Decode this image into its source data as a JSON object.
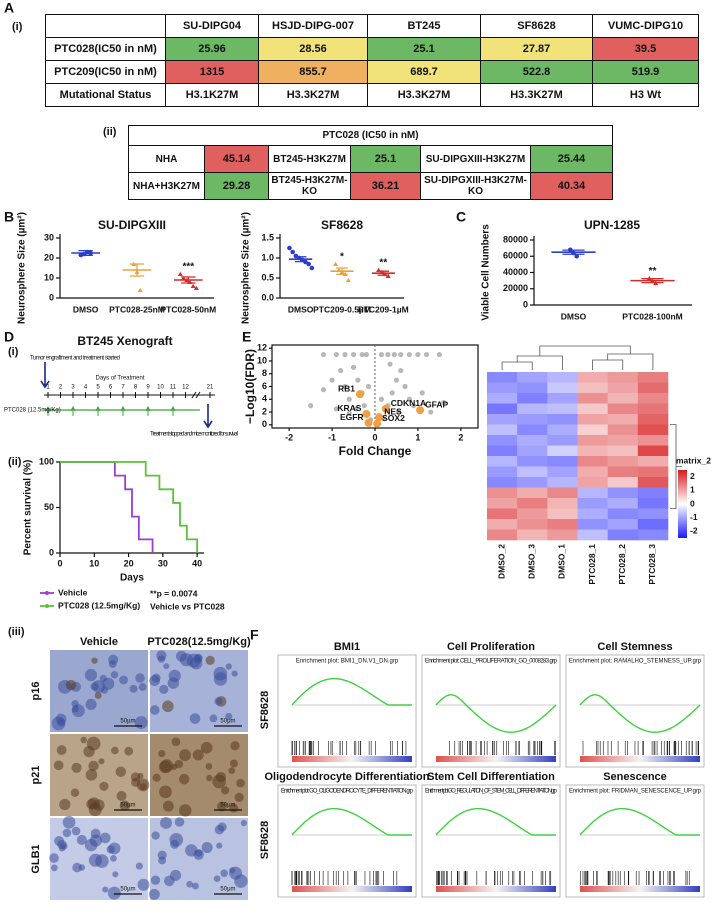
{
  "panel_labels": {
    "a": "A",
    "b": "B",
    "c": "C",
    "d": "D",
    "e": "E",
    "f": "F"
  },
  "table_i": {
    "label": "(i)",
    "columns": [
      "SU-DIPG04",
      "HSJD-DIPG-007",
      "BT245",
      "SF8628",
      "VUMC-DIPG10"
    ],
    "rows": [
      {
        "header": "PTC028(IC50 in nM)",
        "cells": [
          "25.96",
          "28.56",
          "25.1",
          "27.87",
          "39.5"
        ],
        "colors": [
          "#6cb865",
          "#f2e27a",
          "#6cb865",
          "#f2e27a",
          "#e06060"
        ]
      },
      {
        "header": "PTC209(IC50 in nM)",
        "cells": [
          "1315",
          "855.7",
          "689.7",
          "522.8",
          "519.9"
        ],
        "colors": [
          "#e06060",
          "#efb060",
          "#f2e27a",
          "#6cb865",
          "#6cb865"
        ]
      },
      {
        "header": "Mutational Status",
        "cells": [
          "H3.1K27M",
          "H3.3K27M",
          "H3.3K27M",
          "H3.3K27M",
          "H3 Wt"
        ]
      }
    ]
  },
  "table_ii": {
    "label": "(ii)",
    "title": "PTC028 (IC50 in nM)",
    "rows": [
      {
        "cells": [
          "NHA",
          "45.14",
          "BT245-H3K27M",
          "25.1",
          "SU-DIPGXIII-H3K27M",
          "25.44"
        ],
        "colors": [
          "#e06060",
          "#6cb865",
          "#6cb865"
        ]
      },
      {
        "cells": [
          "NHA+H3K27M",
          "29.28",
          "BT245-H3K27M-KO",
          "36.21",
          "SU-DIPGXIII-H3K27M-KO",
          "40.34"
        ],
        "colors": [
          "#6cb865",
          "#e06060",
          "#e06060"
        ]
      }
    ]
  },
  "chart_data": [
    {
      "type": "dot",
      "title": "SU-DIPGXIII",
      "ylabel": "Neurosphere Size (µm²)",
      "categories": [
        "DMSO",
        "PTC028-25nM",
        "PTC028-50nM"
      ],
      "points": [
        [
          21.5,
          22,
          23,
          22.5
        ],
        [
          17,
          13,
          4
        ],
        [
          12,
          10,
          9,
          8,
          6,
          5
        ]
      ],
      "means": [
        22.5,
        14,
        9
      ],
      "errors": [
        1.2,
        3,
        1.5
      ],
      "colors": [
        "#2b3fc8",
        "#e8a33a",
        "#d62b2b"
      ],
      "annotations": [
        null,
        null,
        "***"
      ],
      "ylim": [
        0,
        30
      ],
      "yticks": [
        0,
        10,
        20,
        30
      ]
    },
    {
      "type": "dot",
      "title": "SF8628",
      "ylabel": "Neurosphere Size (µm²)",
      "categories": [
        "DMSO",
        "PTC209-0.5µM",
        "PTC209-1µM"
      ],
      "points": [
        [
          1.25,
          1.15,
          1.05,
          1.0,
          0.95,
          0.9,
          0.85,
          0.75
        ],
        [
          0.85,
          0.7,
          0.65,
          0.6,
          0.45
        ],
        [
          0.7,
          0.65,
          0.6,
          0.55
        ]
      ],
      "means": [
        0.97,
        0.67,
        0.62
      ],
      "errors": [
        0.06,
        0.08,
        0.05
      ],
      "colors": [
        "#2b3fc8",
        "#e8a33a",
        "#d62b2b"
      ],
      "annotations": [
        null,
        "*",
        "**"
      ],
      "ylim": [
        0,
        1.5
      ],
      "yticks": [
        {
          "value": 0,
          "label": "0.0"
        },
        {
          "value": 0.5,
          "label": "0.5"
        },
        {
          "value": 1,
          "label": "1.0"
        },
        {
          "value": 1.5,
          "label": "1.5"
        }
      ]
    },
    {
      "type": "dot",
      "title": "UPN-1285",
      "ylabel": "Viable Cell Numbers",
      "categories": [
        "DMSO",
        "PTC028-100nM"
      ],
      "points": [
        [
          68000,
          64000,
          60000
        ],
        [
          33000,
          30000,
          27000
        ]
      ],
      "means": [
        65000,
        30000
      ],
      "errors": [
        2500,
        2500
      ],
      "colors": [
        "#2b3fc8",
        "#d62b2b"
      ],
      "annotations": [
        null,
        "**"
      ],
      "ylim": [
        0,
        80000
      ],
      "yticks": [
        0,
        20000,
        40000,
        60000,
        80000
      ]
    },
    {
      "type": "survival",
      "xlabel": "Days",
      "ylabel": "Percent survival (%)",
      "xlim": [
        0,
        42
      ],
      "xticks": [
        0,
        10,
        20,
        30,
        40
      ],
      "ylim": [
        0,
        100
      ],
      "yticks": [
        0,
        50,
        100
      ],
      "series": [
        {
          "name": "Vehicle",
          "color": "#9a3fd0",
          "x": [
            0,
            16,
            19,
            21,
            23,
            27
          ],
          "y": [
            100,
            85,
            70,
            40,
            15,
            0
          ]
        },
        {
          "name": "PTC028 (12.5mg/Kg)",
          "color": "#5cc23a",
          "x": [
            0,
            25,
            29,
            33,
            35,
            37,
            40
          ],
          "y": [
            100,
            85,
            70,
            55,
            30,
            15,
            0
          ]
        }
      ],
      "annotations": [
        "**p = 0.0074",
        "Vehicle vs PTC028"
      ]
    },
    {
      "type": "volcano",
      "xlabel": "Fold Change",
      "ylabel": "−Log10(FDR)",
      "xlim": [
        -2.4,
        2.4
      ],
      "xticks": [
        -2,
        -1,
        0,
        1,
        2
      ],
      "ylim": [
        -0.5,
        12.5
      ],
      "yticks": [
        0,
        2,
        4,
        6,
        8,
        10,
        12
      ],
      "background": {
        "color": "#9a9a9a",
        "x": [
          -1.2,
          -0.9,
          -0.7,
          -0.5,
          -0.3,
          -0.2,
          0.15,
          0.3,
          0.45,
          0.6,
          0.8,
          1.0,
          1.2,
          1.5,
          -1.5,
          -1.2,
          -1.0,
          -0.8,
          -0.7,
          -0.6,
          -0.5,
          -0.4,
          -0.3,
          -0.25,
          -0.2,
          -0.1,
          -0.6,
          -0.9,
          0.2,
          0.3,
          0.4,
          0.5,
          0.6,
          0.7,
          0.8,
          0.9,
          1.1,
          1.3,
          1.6,
          0.35,
          0.55,
          -0.45,
          0.15,
          -0.15
        ],
        "y": [
          11,
          11,
          11,
          11,
          11,
          11,
          11,
          11,
          11,
          11,
          11,
          11,
          11,
          11,
          3,
          5.5,
          7,
          8.5,
          6,
          4,
          9,
          7,
          5,
          3,
          1.5,
          0.8,
          1.8,
          2.5,
          1,
          3,
          5,
          7,
          8.5,
          6,
          4,
          3,
          5,
          2,
          3.5,
          9.5,
          2,
          2.5,
          4,
          6
        ]
      },
      "genes": {
        "color": "#f0a040",
        "labels": [
          "RB1",
          "CDKN1A",
          "GFAP",
          "KRAS",
          "NES",
          "EGFR",
          "SOX2"
        ],
        "x": [
          -0.35,
          0.25,
          1.05,
          -0.2,
          0.1,
          -0.15,
          0.05
        ],
        "y": [
          4.8,
          2.5,
          2.3,
          1.7,
          1.2,
          0.3,
          0.2
        ]
      }
    },
    {
      "type": "heatmap",
      "columns": [
        "DMSO_2",
        "DMSO_3",
        "DMSO_1",
        "PTC028_1",
        "PTC028_2",
        "PTC028_3"
      ],
      "values": [
        [
          -1.3,
          -1.0,
          -0.8,
          0.9,
          1.1,
          1.4
        ],
        [
          -1.1,
          -1.2,
          -0.6,
          0.7,
          1.0,
          1.6
        ],
        [
          -0.9,
          -1.4,
          -1.0,
          1.2,
          0.8,
          1.3
        ],
        [
          -1.5,
          -0.8,
          -0.7,
          0.6,
          1.3,
          1.5
        ],
        [
          -1.0,
          -1.1,
          -1.2,
          1.0,
          0.9,
          1.7
        ],
        [
          -0.7,
          -1.3,
          -0.9,
          0.5,
          1.2,
          1.9
        ],
        [
          -1.2,
          -0.9,
          -1.1,
          1.1,
          1.0,
          1.2
        ],
        [
          -1.4,
          -1.0,
          -0.5,
          0.8,
          0.7,
          2.0
        ],
        [
          -0.8,
          -1.2,
          -1.3,
          1.3,
          1.1,
          0.9
        ],
        [
          -1.1,
          -0.7,
          -1.0,
          0.9,
          1.4,
          1.5
        ],
        [
          -1.3,
          -1.1,
          -0.8,
          1.0,
          0.6,
          1.8
        ],
        [
          1.2,
          0.9,
          1.3,
          -0.8,
          -1.2,
          -1.4
        ],
        [
          1.0,
          1.4,
          0.8,
          -1.1,
          -0.9,
          -1.5
        ],
        [
          1.5,
          1.1,
          0.7,
          -0.9,
          -1.3,
          -1.2
        ],
        [
          0.9,
          1.2,
          1.4,
          -1.2,
          -1.0,
          -1.6
        ],
        [
          1.3,
          0.8,
          1.1,
          -0.7,
          -1.4,
          -1.3
        ]
      ],
      "colorbar_label": "matrix_2",
      "zlim": [
        -2.5,
        2.5
      ],
      "zticks": [
        2,
        1,
        0,
        -1,
        -2
      ],
      "colors": [
        "#1a1aff",
        "#ffffff",
        "#d7191c"
      ]
    }
  ],
  "xenograft": {
    "label": "(i)",
    "title": "BT245 Xenograft",
    "start_note": "Tumor engraftment and treatment started",
    "days_title": "Days of Treatment",
    "days": [
      "1",
      "2",
      "3",
      "4",
      "5",
      "6",
      "7",
      "8",
      "9",
      "10",
      "11",
      "12",
      "21"
    ],
    "drug": "PTC028 (12.5mg/Kg)",
    "end_note": "Treatment stopped and mice monitored for survival",
    "survival_label": "(ii)"
  },
  "ihc": {
    "label": "(iii)",
    "columns": [
      "Vehicle",
      "PTC028(12.5mg/Kg)"
    ],
    "rows": [
      "p16",
      "p21",
      "GLB1"
    ],
    "scale": "50µm"
  },
  "gsea": {
    "row_labels": [
      "SF8628",
      "SF8628"
    ],
    "panels": [
      {
        "title": "BMI1",
        "plot": "Enrichment plot: BMI1_DN.V1_DN.grp"
      },
      {
        "title": "Cell Proliferation",
        "plot": "Enrichment plot: CELL_PROLIFERATION_GO_0008283.grp"
      },
      {
        "title": "Cell Stemness",
        "plot": "Enrichment plot: RAMALHO_STEMNESS_UP.grp"
      },
      {
        "title": "Oligodendrocyte Differentiation",
        "plot": "Enrichment plot: GO_OLIGODENDROCYTE_DIFFERENTIATION.grp"
      },
      {
        "title": "Stem Cell Differentiation",
        "plot": "Enrichment plot: GO_REGULATION_OF_STEM_CELL_DIFFERENTIATION.grp"
      },
      {
        "title": "Senescence",
        "plot": "Enrichment plot: FRIDMAN_SENESCENCE_UP.grp"
      }
    ]
  }
}
